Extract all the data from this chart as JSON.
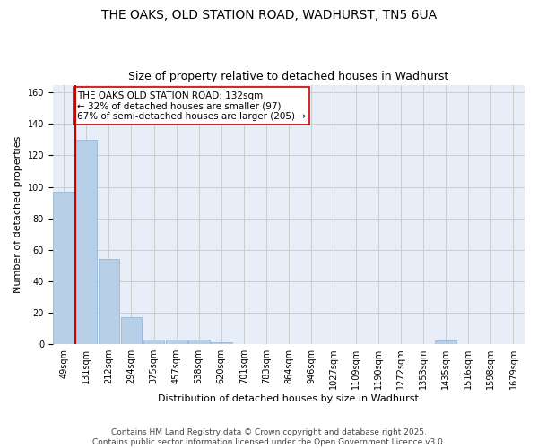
{
  "title": "THE OAKS, OLD STATION ROAD, WADHURST, TN5 6UA",
  "subtitle": "Size of property relative to detached houses in Wadhurst",
  "xlabel": "Distribution of detached houses by size in Wadhurst",
  "ylabel": "Number of detached properties",
  "bar_values": [
    97,
    130,
    54,
    17,
    3,
    3,
    3,
    1,
    0,
    0,
    0,
    0,
    0,
    0,
    0,
    0,
    0,
    2,
    0,
    0,
    0
  ],
  "categories": [
    "49sqm",
    "131sqm",
    "212sqm",
    "294sqm",
    "375sqm",
    "457sqm",
    "538sqm",
    "620sqm",
    "701sqm",
    "783sqm",
    "864sqm",
    "946sqm",
    "1027sqm",
    "1109sqm",
    "1190sqm",
    "1272sqm",
    "1353sqm",
    "1435sqm",
    "1516sqm",
    "1598sqm",
    "1679sqm"
  ],
  "bar_color": "#b8cfe8",
  "bar_edge_color": "#8aafd4",
  "vline_x": 0.5,
  "vline_color": "#cc0000",
  "annotation_line1": "THE OAKS OLD STATION ROAD: 132sqm",
  "annotation_line2": "← 32% of detached houses are smaller (97)",
  "annotation_line3": "67% of semi-detached houses are larger (205) →",
  "annotation_box_color": "#ffffff",
  "annotation_box_edge": "#cc0000",
  "ylim": [
    0,
    165
  ],
  "yticks": [
    0,
    20,
    40,
    60,
    80,
    100,
    120,
    140,
    160
  ],
  "grid_color": "#cccccc",
  "bg_color": "#e8eef7",
  "footer_text": "Contains HM Land Registry data © Crown copyright and database right 2025.\nContains public sector information licensed under the Open Government Licence v3.0.",
  "title_fontsize": 10,
  "subtitle_fontsize": 9,
  "axis_label_fontsize": 8,
  "tick_fontsize": 7,
  "annotation_fontsize": 7.5,
  "footer_fontsize": 6.5
}
